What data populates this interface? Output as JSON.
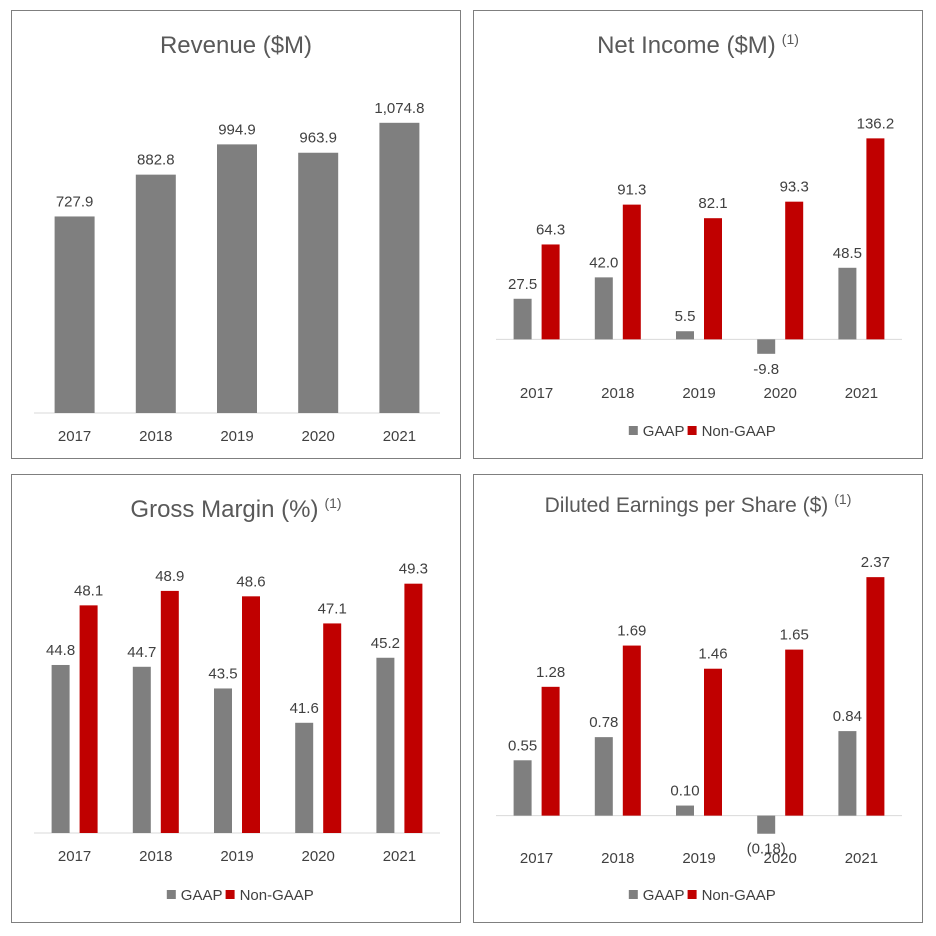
{
  "colors": {
    "gaap": "#7f7f7f",
    "non_gaap": "#c00000",
    "axis": "#d9d9d9"
  },
  "chart_data": [
    {
      "type": "bar",
      "title": "Revenue ($M)",
      "footnote": "",
      "categories": [
        "2017",
        "2018",
        "2019",
        "2020",
        "2021"
      ],
      "series": [
        {
          "name": "Revenue",
          "values": [
            727.9,
            882.8,
            994.9,
            963.9,
            1074.8
          ],
          "labels": [
            "727.9",
            "882.8",
            "994.9",
            "963.9",
            "1,074.8"
          ]
        }
      ],
      "ylim": [
        0,
        1100
      ],
      "legend": "none"
    },
    {
      "type": "bar",
      "title": "Net Income ($M)",
      "footnote": "(1)",
      "categories": [
        "2017",
        "2018",
        "2019",
        "2020",
        "2021"
      ],
      "series": [
        {
          "name": "GAAP",
          "values": [
            27.5,
            42.0,
            5.5,
            -9.8,
            48.5
          ],
          "labels": [
            "27.5",
            "42.0",
            "5.5",
            "-9.8",
            "48.5"
          ]
        },
        {
          "name": "Non-GAAP",
          "values": [
            64.3,
            91.3,
            82.1,
            93.3,
            136.2
          ],
          "labels": [
            "64.3",
            "91.3",
            "82.1",
            "93.3",
            "136.2"
          ]
        }
      ],
      "ylim": [
        -35,
        150
      ],
      "legend": "bottom"
    },
    {
      "type": "bar",
      "title": "Gross Margin (%)",
      "footnote": "(1)",
      "categories": [
        "2017",
        "2018",
        "2019",
        "2020",
        "2021"
      ],
      "series": [
        {
          "name": "GAAP",
          "values": [
            44.8,
            44.7,
            43.5,
            41.6,
            45.2
          ],
          "labels": [
            "44.8",
            "44.7",
            "43.5",
            "41.6",
            "45.2"
          ]
        },
        {
          "name": "Non-GAAP",
          "values": [
            48.1,
            48.9,
            48.6,
            47.1,
            49.3
          ],
          "labels": [
            "48.1",
            "48.9",
            "48.6",
            "47.1",
            "49.3"
          ]
        }
      ],
      "ylim": [
        35.5,
        50.5
      ],
      "legend": "bottom"
    },
    {
      "type": "bar",
      "title": "Diluted Earnings per Share ($)",
      "footnote": "(1)",
      "categories": [
        "2017",
        "2018",
        "2019",
        "2020",
        "2021"
      ],
      "series": [
        {
          "name": "GAAP",
          "values": [
            0.55,
            0.78,
            0.1,
            -0.18,
            0.84
          ],
          "labels": [
            "0.55",
            "0.78",
            "0.10",
            "(0.18)",
            "0.84"
          ]
        },
        {
          "name": "Non-GAAP",
          "values": [
            1.28,
            1.69,
            1.46,
            1.65,
            2.37
          ],
          "labels": [
            "1.28",
            "1.69",
            "1.46",
            "1.65",
            "2.37"
          ]
        }
      ],
      "ylim": [
        -0.6,
        2.6
      ],
      "legend": "bottom"
    }
  ]
}
